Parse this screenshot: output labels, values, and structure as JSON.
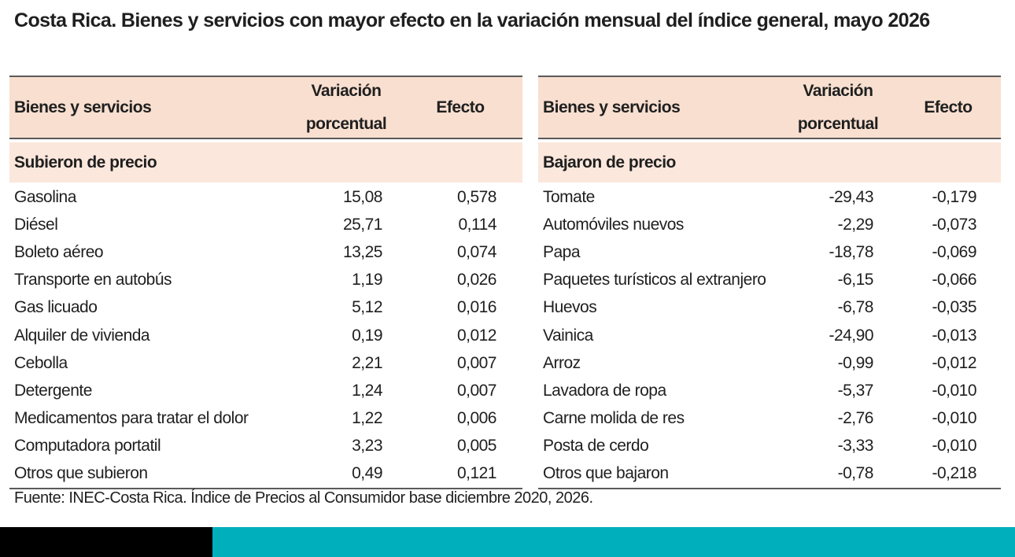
{
  "title": "Costa Rica. Bienes y servicios con mayor efecto en la variación mensual del índice general, mayo 2026",
  "headers": {
    "name": "Bienes y servicios",
    "variation_line1": "Variación",
    "variation_line2": "porcentual",
    "effect": "Efecto"
  },
  "left_table": {
    "section": "Subieron de precio",
    "rows": [
      {
        "name": "Gasolina",
        "variation": "15,08",
        "effect": "0,578"
      },
      {
        "name": "Diésel",
        "variation": "25,71",
        "effect": "0,114"
      },
      {
        "name": "Boleto aéreo",
        "variation": "13,25",
        "effect": "0,074"
      },
      {
        "name": "Transporte en autobús",
        "variation": "1,19",
        "effect": "0,026"
      },
      {
        "name": "Gas licuado",
        "variation": "5,12",
        "effect": "0,016"
      },
      {
        "name": "Alquiler de vivienda",
        "variation": "0,19",
        "effect": "0,012"
      },
      {
        "name": "Cebolla",
        "variation": "2,21",
        "effect": "0,007"
      },
      {
        "name": "Detergente",
        "variation": "1,24",
        "effect": "0,007"
      },
      {
        "name": "Medicamentos para tratar el dolor",
        "variation": "1,22",
        "effect": "0,006"
      },
      {
        "name": "Computadora portatil",
        "variation": "3,23",
        "effect": "0,005"
      },
      {
        "name": "Otros que subieron",
        "variation": "0,49",
        "effect": "0,121"
      }
    ]
  },
  "right_table": {
    "section": "Bajaron de precio",
    "rows": [
      {
        "name": "Tomate",
        "variation": "-29,43",
        "effect": "-0,179"
      },
      {
        "name": "Automóviles nuevos",
        "variation": "-2,29",
        "effect": "-0,073"
      },
      {
        "name": "Papa",
        "variation": "-18,78",
        "effect": "-0,069"
      },
      {
        "name": "Paquetes turísticos al extranjero",
        "variation": "-6,15",
        "effect": "-0,066"
      },
      {
        "name": "Huevos",
        "variation": "-6,78",
        "effect": "-0,035"
      },
      {
        "name": "Vainica",
        "variation": "-24,90",
        "effect": "-0,013"
      },
      {
        "name": "Arroz",
        "variation": "-0,99",
        "effect": "-0,012"
      },
      {
        "name": "Lavadora de ropa",
        "variation": "-5,37",
        "effect": "-0,010"
      },
      {
        "name": "Carne molida de res",
        "variation": "-2,76",
        "effect": "-0,010"
      },
      {
        "name": "Posta de cerdo",
        "variation": "-3,33",
        "effect": "-0,010"
      },
      {
        "name": "Otros que bajaron",
        "variation": "-0,78",
        "effect": "-0,218"
      }
    ]
  },
  "source": "Fuente: INEC-Costa Rica. Índice de Precios al Consumidor base diciembre 2020, 2026.",
  "colors": {
    "header_bg": "#f8dfd0",
    "section_bg": "#fbe7dc",
    "footer_black": "#000000",
    "footer_teal": "#00afbc"
  }
}
